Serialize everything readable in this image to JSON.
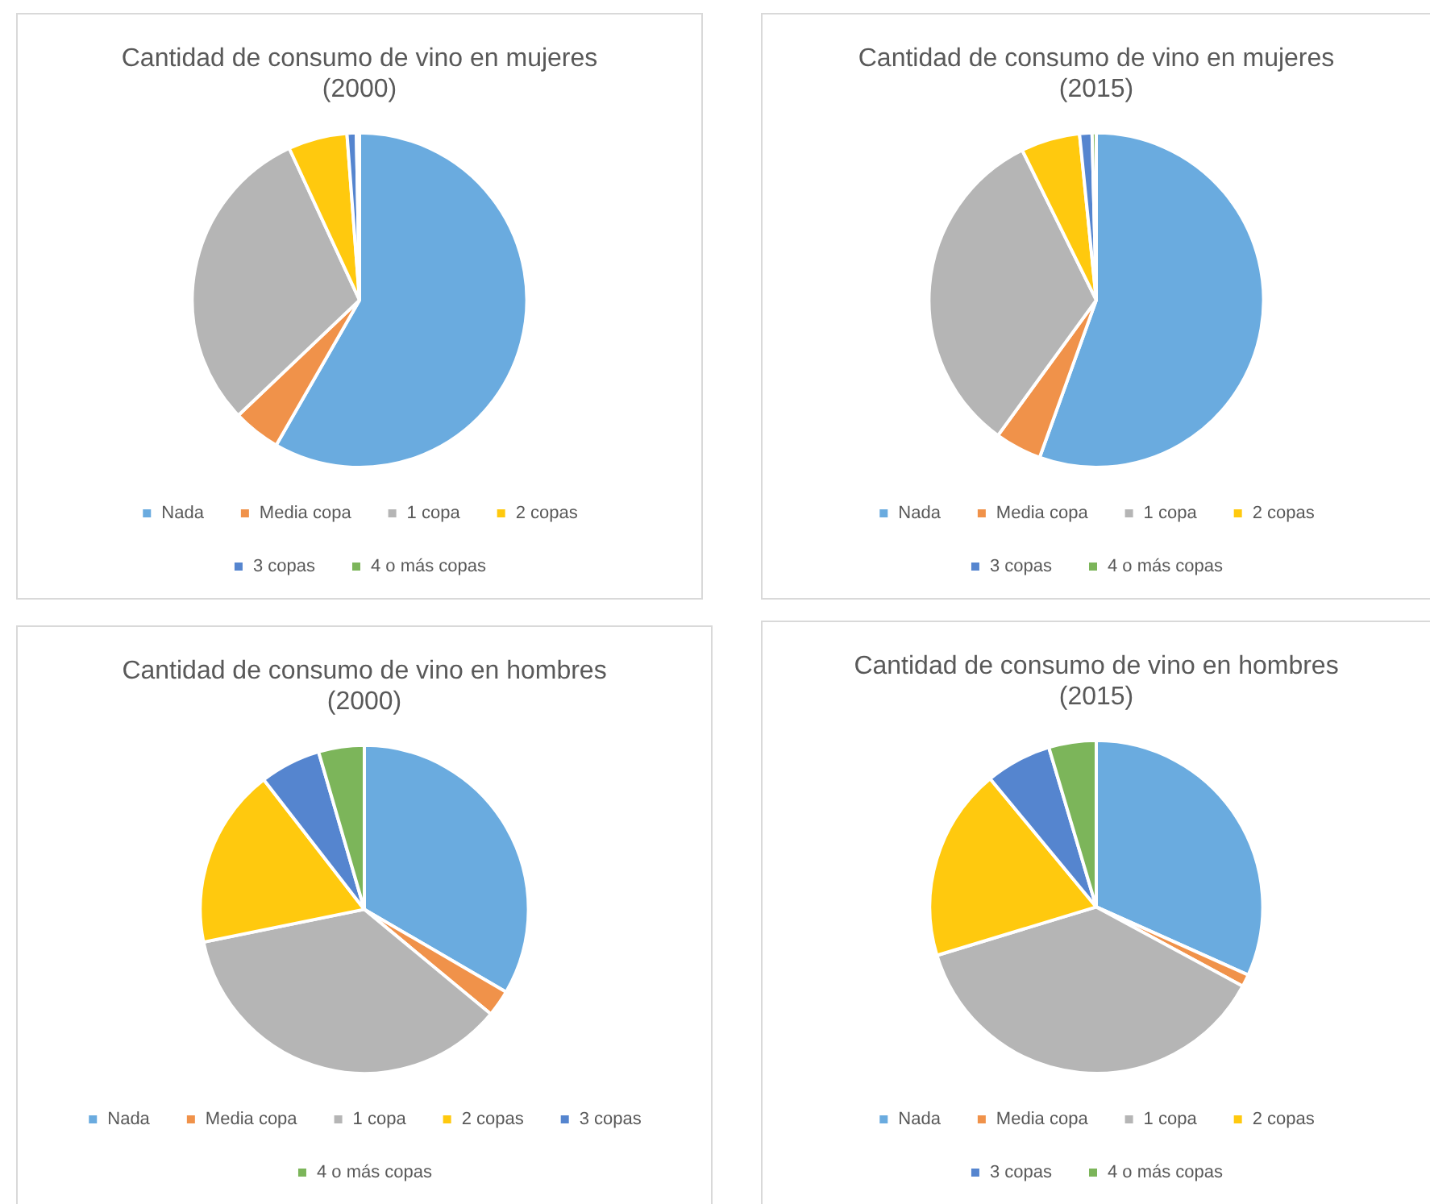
{
  "chart_data": [
    {
      "type": "pie",
      "title": "Cantidad de consumo de vino en mujeres (2000)",
      "categories": [
        "Nada",
        "Media copa",
        "1 copa",
        "2 copas",
        "3 copas",
        "4 o más copas"
      ],
      "values": [
        58.3,
        4.6,
        30.2,
        5.7,
        0.9,
        0.3
      ],
      "colors": [
        "#6aabdf",
        "#f0924a",
        "#b5b5b5",
        "#ffc90e",
        "#5585cf",
        "#7cb55a"
      ],
      "legend": "bottom"
    },
    {
      "type": "pie",
      "title": "Cantidad de consumo de vino en mujeres (2015)",
      "categories": [
        "Nada",
        "Media copa",
        "1 copa",
        "2 copas",
        "3 copas",
        "4 o más copas"
      ],
      "values": [
        55.5,
        4.5,
        32.7,
        5.7,
        1.2,
        0.4
      ],
      "colors": [
        "#6aabdf",
        "#f0924a",
        "#b5b5b5",
        "#ffc90e",
        "#5585cf",
        "#7cb55a"
      ],
      "legend": "bottom"
    },
    {
      "type": "pie",
      "title": "Cantidad de consumo de vino en hombres (2000)",
      "categories": [
        "Nada",
        "Media copa",
        "1 copa",
        "2 copas",
        "3 copas",
        "4 o más copas"
      ],
      "values": [
        33.4,
        2.6,
        35.8,
        17.7,
        6,
        4.5
      ],
      "colors": [
        "#6aabdf",
        "#f0924a",
        "#b5b5b5",
        "#ffc90e",
        "#5585cf",
        "#7cb55a"
      ],
      "legend": "bottom"
    },
    {
      "type": "pie",
      "title": "Cantidad de consumo de vino en hombres (2015)",
      "categories": [
        "Nada",
        "Media copa",
        "1 copa",
        "2 copas",
        "3 copas",
        "4 o más copas"
      ],
      "values": [
        31.7,
        1.2,
        37.4,
        18.7,
        6.4,
        4.6
      ],
      "colors": [
        "#6aabdf",
        "#f0924a",
        "#b5b5b5",
        "#ffc90e",
        "#5585cf",
        "#7cb55a"
      ],
      "legend": "bottom"
    }
  ]
}
